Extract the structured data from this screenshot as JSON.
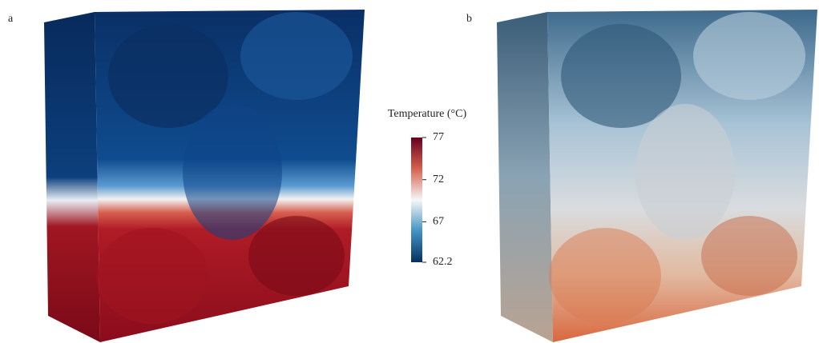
{
  "panels": [
    {
      "label": "a"
    },
    {
      "label": "b"
    }
  ],
  "colorbar": {
    "title": "Temperature (°C)",
    "lim": [
      62.2,
      77
    ],
    "ticks": [
      77,
      72,
      67,
      62.2
    ]
  }
}
